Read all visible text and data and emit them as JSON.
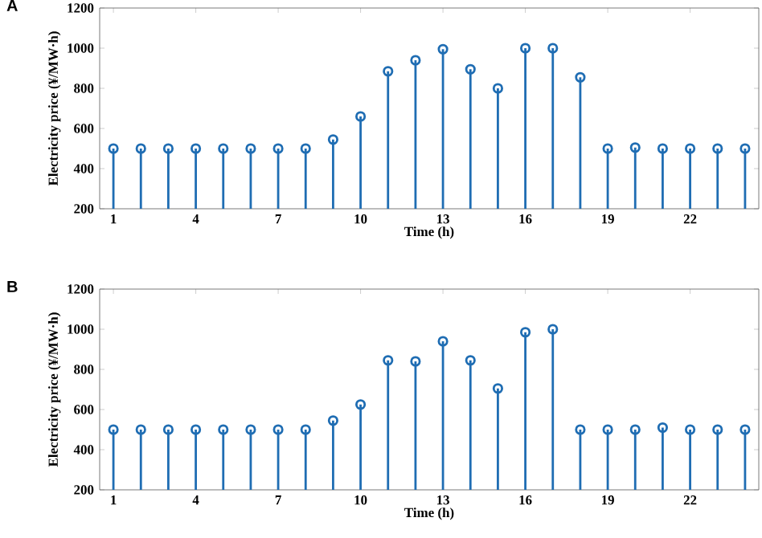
{
  "chart_data": [
    {
      "type": "lollipop",
      "title": "A",
      "xlabel": "Time (h)",
      "ylabel": "Electricity price (¥/MW·h)",
      "x": [
        1,
        2,
        3,
        4,
        5,
        6,
        7,
        8,
        9,
        10,
        11,
        12,
        13,
        14,
        15,
        16,
        17,
        18,
        19,
        20,
        21,
        22,
        23,
        24
      ],
      "values": [
        500,
        500,
        500,
        500,
        500,
        500,
        500,
        500,
        545,
        660,
        885,
        940,
        995,
        895,
        800,
        1000,
        1000,
        855,
        500,
        505,
        500,
        500,
        500,
        500
      ],
      "color": "#1f6db3",
      "marker": "circle",
      "xlim": [
        0.5,
        24.5
      ],
      "xticks": [
        1,
        4,
        7,
        10,
        13,
        16,
        19,
        22
      ],
      "ylim": [
        200,
        1200
      ],
      "yticks": [
        200,
        400,
        600,
        800,
        1000,
        1200
      ]
    },
    {
      "type": "lollipop",
      "title": "B",
      "xlabel": "Time (h)",
      "ylabel": "Electricity price (¥/MW·h)",
      "x": [
        1,
        2,
        3,
        4,
        5,
        6,
        7,
        8,
        9,
        10,
        11,
        12,
        13,
        14,
        15,
        16,
        17,
        18,
        19,
        20,
        21,
        22,
        23,
        24
      ],
      "values": [
        500,
        500,
        500,
        500,
        500,
        500,
        500,
        500,
        545,
        625,
        845,
        840,
        940,
        845,
        705,
        985,
        1000,
        500,
        500,
        500,
        510,
        500,
        500,
        500
      ],
      "color": "#1f6db3",
      "marker": "circle",
      "xlim": [
        0.5,
        24.5
      ],
      "xticks": [
        1,
        4,
        7,
        10,
        13,
        16,
        19,
        22
      ],
      "ylim": [
        200,
        1200
      ],
      "yticks": [
        200,
        400,
        600,
        800,
        1000,
        1200
      ]
    }
  ]
}
